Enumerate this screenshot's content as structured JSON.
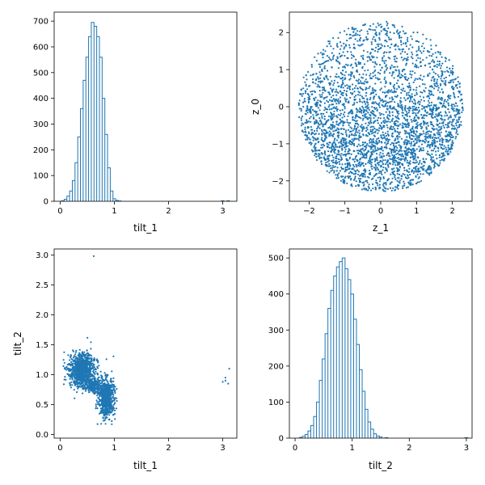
{
  "chart_data": [
    {
      "type": "histogram",
      "xlabel": "tilt_1",
      "ylabel": "",
      "xlim": [
        -0.11,
        3.26
      ],
      "ylim": [
        0,
        735
      ],
      "xticks": [
        "0",
        "1",
        "2",
        "3"
      ],
      "yticks": [
        "0",
        "100",
        "200",
        "300",
        "400",
        "500",
        "600",
        "700"
      ],
      "series": [
        {
          "x": [
            0.05,
            0.1,
            0.15,
            0.2,
            0.25,
            0.3,
            0.35,
            0.4,
            0.45,
            0.5,
            0.55,
            0.6,
            0.65,
            0.7,
            0.75,
            0.8,
            0.85,
            0.9,
            0.95,
            1.0,
            1.05,
            1.1,
            3.0,
            3.1
          ],
          "values": [
            2,
            8,
            20,
            40,
            80,
            150,
            250,
            360,
            470,
            560,
            640,
            695,
            680,
            640,
            560,
            400,
            260,
            130,
            40,
            10,
            3,
            1,
            2,
            2
          ]
        }
      ]
    },
    {
      "type": "scatter",
      "xlabel": "z_1",
      "ylabel": "z_0",
      "xlim": [
        -2.55,
        2.55
      ],
      "ylim": [
        -2.55,
        2.55
      ],
      "xticks": [
        "−2",
        "−1",
        "0",
        "1",
        "2"
      ],
      "yticks": [
        "−2",
        "−1",
        "0",
        "1",
        "2"
      ],
      "description_values": {
        "disc_center": [
          0,
          0
        ],
        "disc_radius": 2.3,
        "dense_center_y": -1.0
      }
    },
    {
      "type": "scatter",
      "xlabel": "tilt_1",
      "ylabel": "tilt_2",
      "xlim": [
        -0.11,
        3.26
      ],
      "ylim": [
        -0.06,
        3.1
      ],
      "xticks": [
        "0",
        "1",
        "2",
        "3"
      ],
      "yticks": [
        "0.0",
        "0.5",
        "1.0",
        "1.5",
        "2.0",
        "2.5",
        "3.0"
      ],
      "clusters": [
        {
          "center": [
            0.4,
            1.08
          ],
          "spread": [
            0.12,
            0.14
          ],
          "count": 900
        },
        {
          "center": [
            0.85,
            0.62
          ],
          "spread": [
            0.07,
            0.16
          ],
          "count": 700
        },
        {
          "center": [
            0.6,
            0.82
          ],
          "spread": [
            0.08,
            0.06
          ],
          "count": 200
        }
      ],
      "outliers": [
        [
          0.62,
          2.98
        ],
        [
          3.0,
          0.88
        ],
        [
          3.05,
          0.95
        ],
        [
          3.1,
          0.85
        ],
        [
          3.12,
          1.1
        ],
        [
          3.05,
          0.9
        ]
      ]
    },
    {
      "type": "histogram",
      "xlabel": "tilt_2",
      "ylabel": "",
      "xlim": [
        -0.1,
        3.1
      ],
      "ylim": [
        0,
        525
      ],
      "xticks": [
        "0",
        "1",
        "2",
        "3"
      ],
      "yticks": [
        "0",
        "100",
        "200",
        "300",
        "400",
        "500"
      ],
      "series": [
        {
          "x": [
            0.1,
            0.15,
            0.2,
            0.25,
            0.3,
            0.35,
            0.4,
            0.45,
            0.5,
            0.55,
            0.6,
            0.65,
            0.7,
            0.75,
            0.8,
            0.85,
            0.9,
            0.95,
            1.0,
            1.05,
            1.1,
            1.15,
            1.2,
            1.25,
            1.3,
            1.35,
            1.4,
            1.45,
            1.5,
            1.6,
            3.0
          ],
          "values": [
            2,
            5,
            10,
            20,
            35,
            60,
            100,
            160,
            220,
            290,
            360,
            410,
            450,
            475,
            490,
            500,
            470,
            440,
            400,
            330,
            260,
            190,
            130,
            80,
            45,
            25,
            12,
            6,
            3,
            1,
            1
          ]
        }
      ]
    }
  ]
}
